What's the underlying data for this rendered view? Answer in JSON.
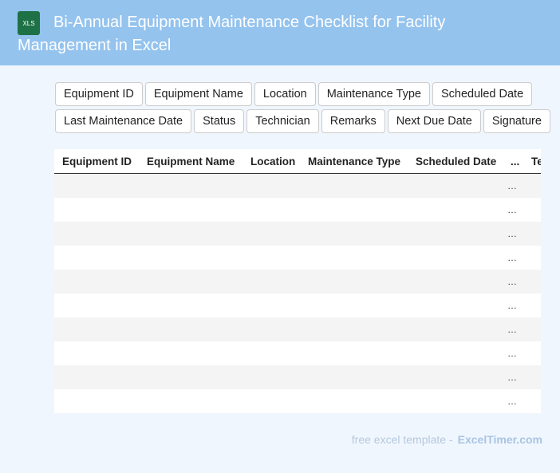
{
  "header": {
    "icon_label": "XLS",
    "title": "Bi-Annual Equipment Maintenance Checklist for Facility Management in Excel"
  },
  "tags": [
    "Equipment ID",
    "Equipment Name",
    "Location",
    "Maintenance Type",
    "Scheduled Date",
    "Last Maintenance Date",
    "Status",
    "Technician",
    "Remarks",
    "Next Due Date",
    "Signature"
  ],
  "table": {
    "columns": [
      "Equipment ID",
      "Equipment Name",
      "Location",
      "Maintenance Type",
      "Scheduled Date",
      "...",
      "Technician"
    ],
    "rows": [
      "…",
      "…",
      "…",
      "…",
      "…",
      "…",
      "…",
      "…",
      "…",
      "…"
    ]
  },
  "footer": {
    "text": "free excel template -",
    "link": "ExcelTimer.com"
  }
}
